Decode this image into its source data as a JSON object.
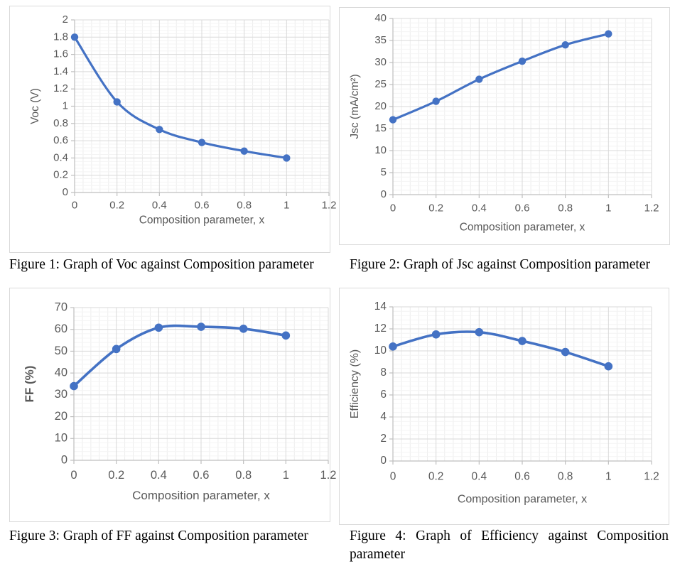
{
  "colors": {
    "series_line": "#4472c4",
    "marker_fill": "#4472c4",
    "major_gridline": "#d9d9d9",
    "minor_gridline_h": "#f4f4f4",
    "minor_gridline_v": "#ededed",
    "axis_line": "#bfbfbf",
    "tick_label": "#595959",
    "axis_title": "#595959",
    "chart_border": "#d9d9d9",
    "chart_background": "#ffffff",
    "caption_text": "#000000"
  },
  "chart_data": [
    {
      "id": "figure-1-voc",
      "type": "line",
      "line_style": "smooth",
      "marker": "circle",
      "legend": "none",
      "grid": "major+minor",
      "x": [
        0,
        0.2,
        0.4,
        0.6,
        0.8,
        1
      ],
      "series": [
        {
          "name": "Voc",
          "values": [
            1.8,
            1.05,
            0.73,
            0.58,
            0.48,
            0.4
          ]
        }
      ],
      "xlabel": "Composition parameter, x",
      "ylabel": "Voc (V)",
      "xlim": [
        0,
        1.2
      ],
      "ylim": [
        0,
        2
      ],
      "x_major_unit": 0.2,
      "y_major_unit": 0.2,
      "x_minor_per_major": 5,
      "y_minor_per_major": 5,
      "xticks": [
        "0",
        "0.2",
        "0.4",
        "0.6",
        "0.8",
        "1",
        "1.2"
      ],
      "yticks": [
        "0",
        "0.2",
        "0.4",
        "0.6",
        "0.8",
        "1",
        "1.2",
        "1.4",
        "1.6",
        "1.8",
        "2"
      ],
      "caption": "Figure 1: Graph of Voc against Composition parameter"
    },
    {
      "id": "figure-2-jsc",
      "type": "line",
      "line_style": "smooth",
      "marker": "circle",
      "legend": "none",
      "grid": "major+minor",
      "x": [
        0,
        0.2,
        0.4,
        0.6,
        0.8,
        1
      ],
      "series": [
        {
          "name": "Jsc",
          "values": [
            17,
            21.2,
            26.2,
            30.3,
            34,
            36.5
          ]
        }
      ],
      "xlabel": "Composition parameter, x",
      "ylabel": "Jsc (mA/cm²)",
      "xlim": [
        0,
        1.2
      ],
      "ylim": [
        0,
        40
      ],
      "x_major_unit": 0.2,
      "y_major_unit": 5,
      "x_minor_per_major": 5,
      "y_minor_per_major": 5,
      "xticks": [
        "0",
        "0.2",
        "0.4",
        "0.6",
        "0.8",
        "1",
        "1.2"
      ],
      "yticks": [
        "0",
        "5",
        "10",
        "15",
        "20",
        "25",
        "30",
        "35",
        "40"
      ],
      "caption": "Figure 2: Graph of Jsc against Composition parameter"
    },
    {
      "id": "figure-3-ff",
      "type": "line",
      "line_style": "smooth",
      "marker": "circle",
      "legend": "none",
      "grid": "major+minor",
      "x": [
        0,
        0.2,
        0.4,
        0.6,
        0.8,
        1
      ],
      "series": [
        {
          "name": "FF",
          "values": [
            34,
            51,
            60.8,
            61.2,
            60.3,
            57.2
          ]
        }
      ],
      "xlabel": "Composition parameter, x",
      "ylabel": "FF (%)",
      "xlim": [
        0,
        1.2
      ],
      "ylim": [
        0,
        70
      ],
      "x_major_unit": 0.2,
      "y_major_unit": 10,
      "x_minor_per_major": 5,
      "y_minor_per_major": 5,
      "xticks": [
        "0",
        "0.2",
        "0.4",
        "0.6",
        "0.8",
        "1",
        "1.2"
      ],
      "yticks": [
        "0",
        "10",
        "20",
        "30",
        "40",
        "50",
        "60",
        "70"
      ],
      "caption": "Figure 3: Graph of FF against Composition parameter"
    },
    {
      "id": "figure-4-efficiency",
      "type": "line",
      "line_style": "smooth",
      "marker": "circle",
      "legend": "none",
      "grid": "major+minor",
      "x": [
        0,
        0.2,
        0.4,
        0.6,
        0.8,
        1
      ],
      "series": [
        {
          "name": "Efficiency",
          "values": [
            10.4,
            11.5,
            11.7,
            10.9,
            9.9,
            8.6
          ]
        }
      ],
      "xlabel": "Composition parameter, x",
      "ylabel": "Efficiency (%)",
      "xlim": [
        0,
        1.2
      ],
      "ylim": [
        0,
        14
      ],
      "x_major_unit": 0.2,
      "y_major_unit": 2,
      "x_minor_per_major": 5,
      "y_minor_per_major": 5,
      "xticks": [
        "0",
        "0.2",
        "0.4",
        "0.6",
        "0.8",
        "1",
        "1.2"
      ],
      "yticks": [
        "0",
        "2",
        "4",
        "6",
        "8",
        "10",
        "12",
        "14"
      ],
      "caption": "Figure 4: Graph of Efficiency against Composition parameter"
    }
  ]
}
